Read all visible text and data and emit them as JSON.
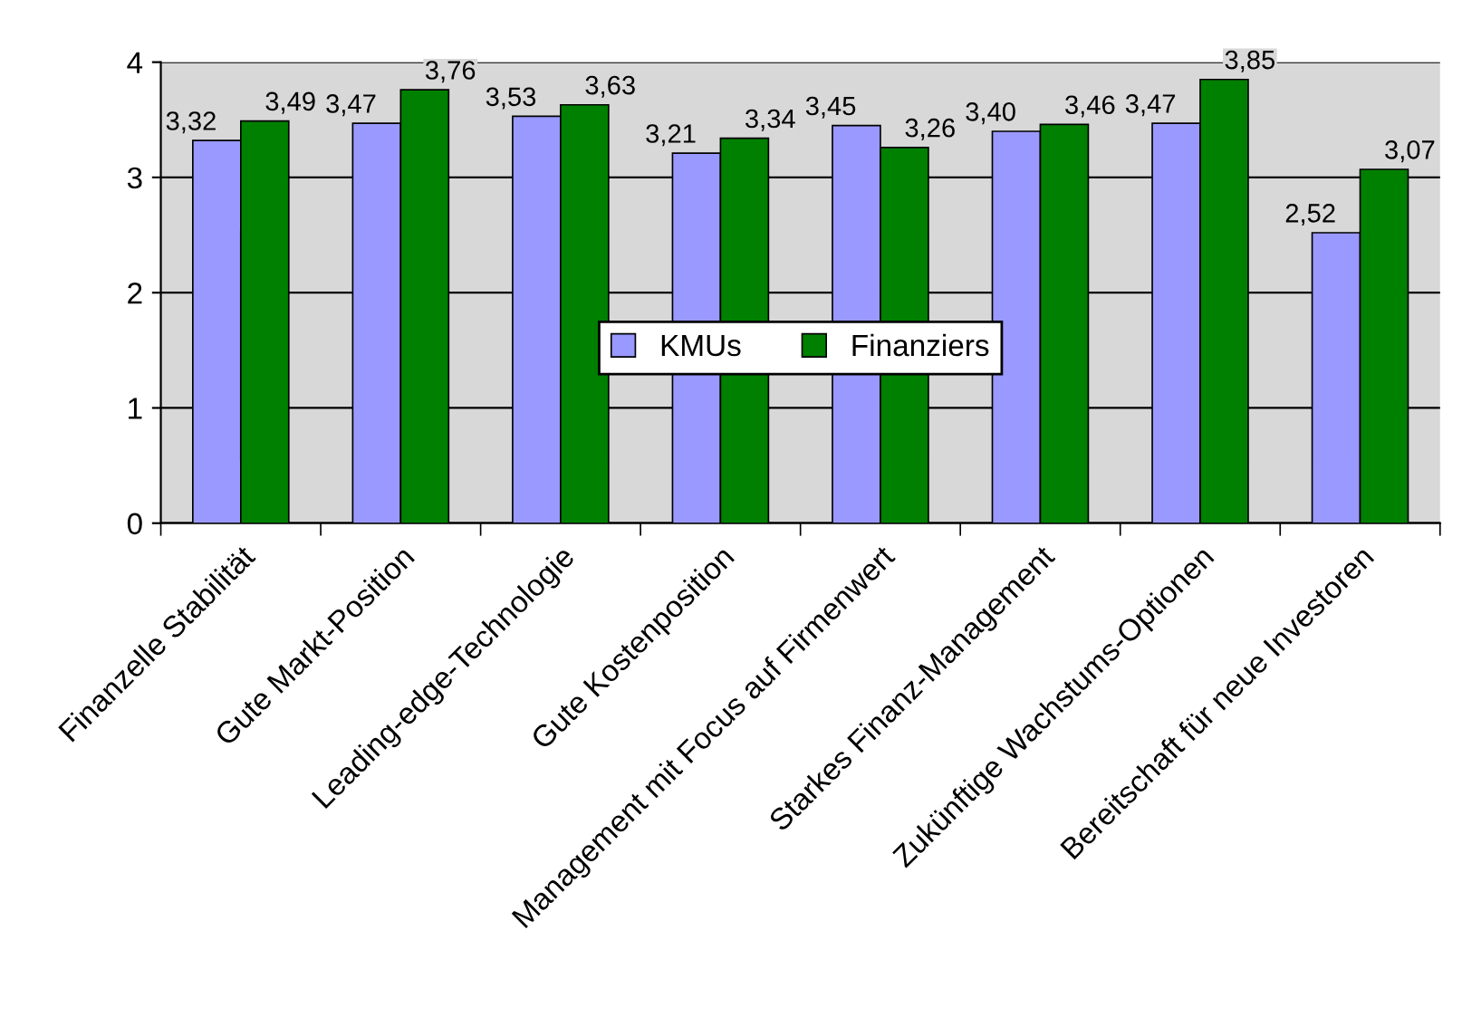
{
  "chart_data": {
    "type": "bar",
    "categories": [
      "Finanzelle Stabilität",
      "Gute Markt-Position",
      "Leading-edge-Technologie",
      "Gute Kostenposition",
      "Management mit Focus auf Firmenwert",
      "Starkes Finanz-Management",
      "Zukünftige Wachstums-Optionen",
      "Bereitschaft für neue Investoren"
    ],
    "series": [
      {
        "name": "KMUs",
        "color": "#9999ff",
        "values": [
          3.32,
          3.47,
          3.53,
          3.21,
          3.45,
          3.4,
          3.47,
          2.52
        ],
        "value_labels": [
          "3,32",
          "3,47",
          "3,53",
          "3,21",
          "3,45",
          "3,40",
          "3,47",
          "2,52"
        ]
      },
      {
        "name": "Finanziers",
        "color": "#008000",
        "values": [
          3.49,
          3.76,
          3.63,
          3.34,
          3.26,
          3.46,
          3.85,
          3.07
        ],
        "value_labels": [
          "3,49",
          "3,76",
          "3,63",
          "3,34",
          "3,26",
          "3,46",
          "3,85",
          "3,07"
        ]
      }
    ],
    "ylim": [
      0,
      4
    ],
    "yticks": [
      0,
      1,
      2,
      3,
      4
    ],
    "grid": "y",
    "legend": "center"
  }
}
